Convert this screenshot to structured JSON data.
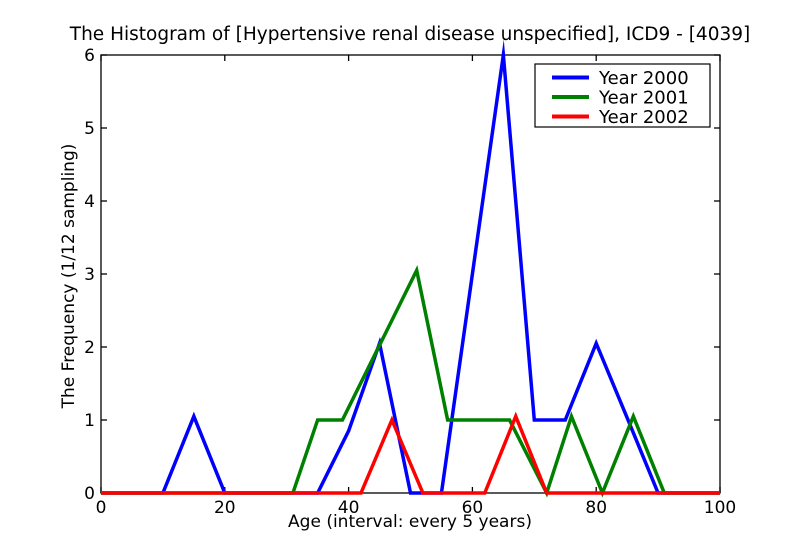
{
  "figure": {
    "background": "#ffffff",
    "frame_color": "#000000"
  },
  "chart_data": {
    "type": "line",
    "title": "The Histogram of [Hypertensive renal disease unspecified], ICD9 - [4039]",
    "xlabel": "Age (interval: every 5 years)",
    "ylabel": "The Frequency (1/12 sampling)",
    "xlim": [
      0,
      100
    ],
    "ylim": [
      0,
      6
    ],
    "xticks": [
      0,
      20,
      40,
      60,
      80,
      100
    ],
    "yticks": [
      0,
      1,
      2,
      3,
      4,
      5,
      6
    ],
    "grid": false,
    "legend": {
      "position": "upper right",
      "entries": [
        "Year 2000",
        "Year 2001",
        "Year 2002"
      ]
    },
    "series": [
      {
        "name": "Year 2000",
        "color": "#0000ff",
        "x": [
          0,
          5,
          10,
          15,
          20,
          25,
          30,
          35,
          40,
          45,
          50,
          55,
          60,
          65,
          70,
          75,
          80,
          85,
          90,
          95,
          100
        ],
        "y": [
          0,
          0,
          0,
          1.05,
          0,
          0,
          0,
          0,
          0.85,
          2.05,
          0,
          0,
          3,
          6,
          1,
          1,
          2.05,
          1.03,
          0,
          0,
          0
        ]
      },
      {
        "name": "Year 2001",
        "color": "#008000",
        "x": [
          0,
          26,
          31,
          35,
          39,
          51,
          56,
          61,
          66,
          72,
          76,
          81,
          86,
          91,
          100
        ],
        "y": [
          0,
          0,
          0,
          1,
          1,
          3.05,
          1,
          1,
          1,
          0,
          1.05,
          0,
          1.05,
          0,
          0
        ]
      },
      {
        "name": "Year 2002",
        "color": "#ff0000",
        "x": [
          0,
          37,
          42,
          47,
          52,
          57,
          62,
          67,
          72,
          100
        ],
        "y": [
          0,
          0,
          0,
          1,
          0,
          0,
          0,
          1.05,
          0,
          0
        ]
      }
    ]
  }
}
